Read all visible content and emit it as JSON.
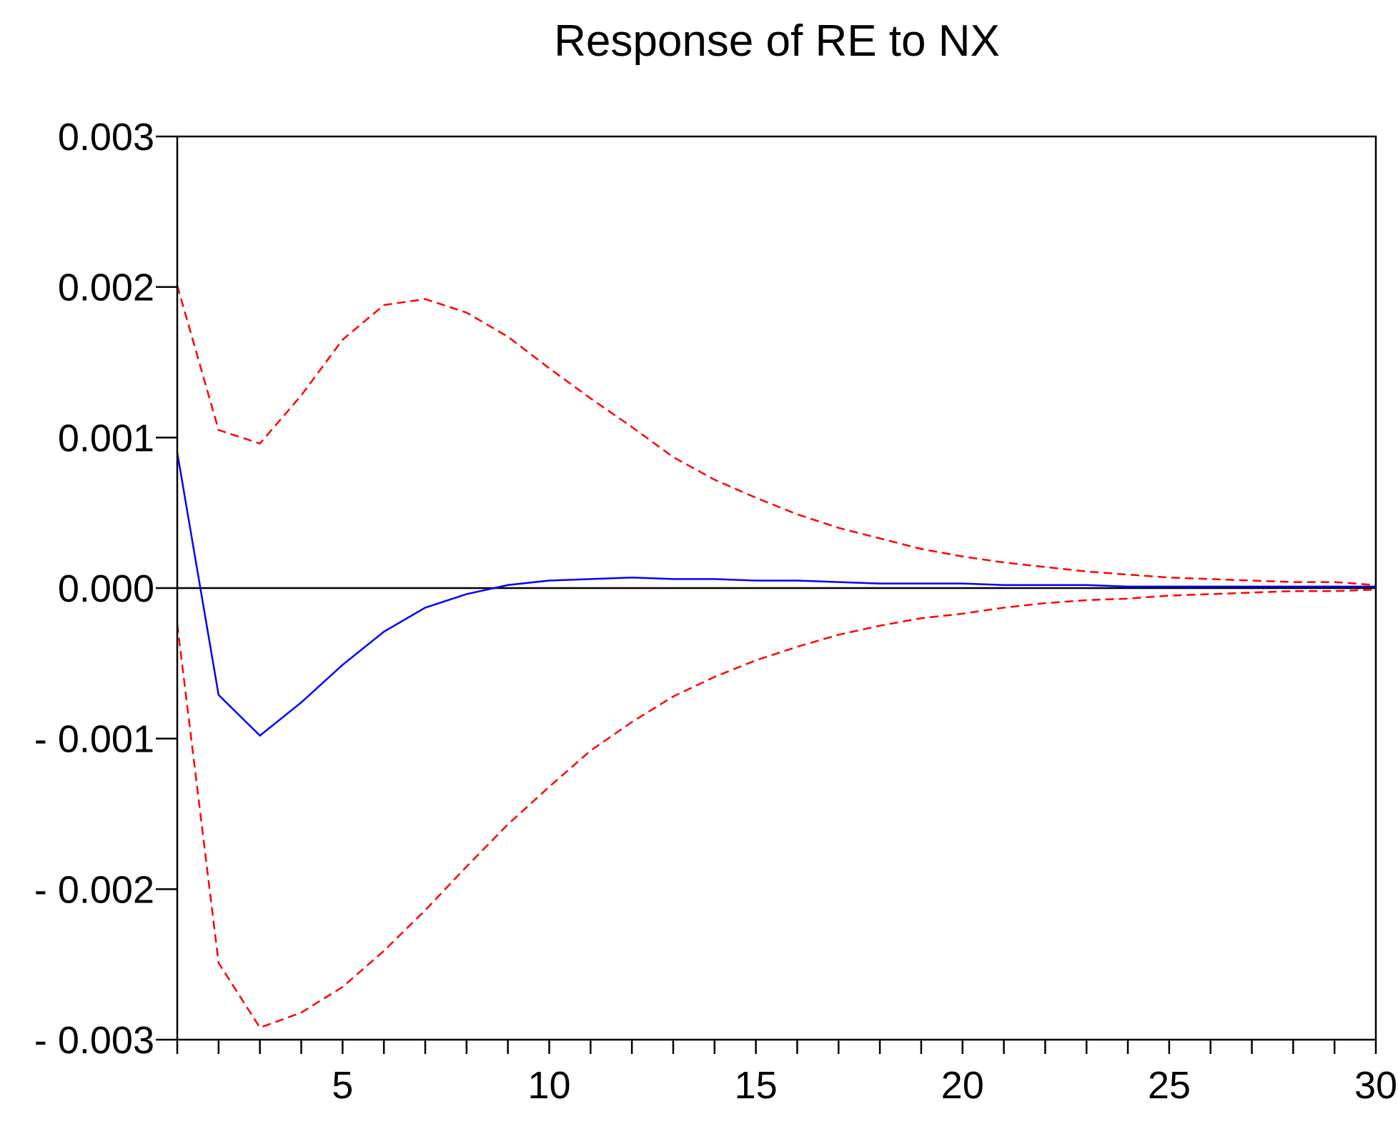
{
  "chart_data": {
    "type": "line",
    "title": "Response of RE to NX",
    "xlabel": "",
    "ylabel": "",
    "xlim": [
      1,
      30
    ],
    "ylim": [
      -0.003,
      0.003
    ],
    "grid": false,
    "legend": "none",
    "x_ticks": [
      5,
      10,
      15,
      20,
      25,
      30
    ],
    "y_ticks": [
      0.003,
      0.002,
      0.001,
      0.0,
      -0.001,
      -0.002,
      -0.003
    ],
    "y_tick_labels": [
      "0.003",
      "0.002",
      "0.001",
      "0.000",
      "- 0.001",
      "- 0.002",
      "- 0.003"
    ],
    "x": [
      1,
      2,
      3,
      4,
      5,
      6,
      7,
      8,
      9,
      10,
      11,
      12,
      13,
      14,
      15,
      16,
      17,
      18,
      19,
      20,
      21,
      22,
      23,
      24,
      25,
      26,
      27,
      28,
      29,
      30
    ],
    "series": [
      {
        "style": "solid",
        "color": "#0000ff",
        "values": [
          0.0009,
          -0.00071,
          -0.00098,
          -0.00076,
          -0.00051,
          -0.00029,
          -0.00013,
          -4e-05,
          2e-05,
          5e-05,
          6e-05,
          7e-05,
          6e-05,
          6e-05,
          5e-05,
          5e-05,
          4e-05,
          3e-05,
          3e-05,
          3e-05,
          2e-05,
          2e-05,
          2e-05,
          1e-05,
          1e-05,
          1e-05,
          1e-05,
          1e-05,
          1e-05,
          1e-05
        ]
      },
      {
        "style": "dashed",
        "color": "#ff0000",
        "values": [
          0.00201,
          0.00105,
          0.00096,
          0.00128,
          0.00165,
          0.00188,
          0.00192,
          0.00183,
          0.00167,
          0.00146,
          0.00126,
          0.00107,
          0.00087,
          0.00072,
          0.0006,
          0.00049,
          0.0004,
          0.00033,
          0.00026,
          0.00021,
          0.00017,
          0.00014,
          0.00011,
          9e-05,
          7e-05,
          6e-05,
          5e-05,
          4e-05,
          4e-05,
          2e-05
        ]
      },
      {
        "style": "dashed",
        "color": "#ff0000",
        "values": [
          -0.00024,
          -0.00249,
          -0.00292,
          -0.00282,
          -0.00265,
          -0.00241,
          -0.00214,
          -0.00185,
          -0.00157,
          -0.00132,
          -0.00108,
          -0.00089,
          -0.00072,
          -0.00059,
          -0.00048,
          -0.00039,
          -0.00031,
          -0.00025,
          -0.0002,
          -0.00017,
          -0.00013,
          -0.0001,
          -8e-05,
          -7e-05,
          -5e-05,
          -4e-05,
          -3e-05,
          -2e-05,
          -2e-05,
          -1e-05
        ]
      }
    ]
  }
}
